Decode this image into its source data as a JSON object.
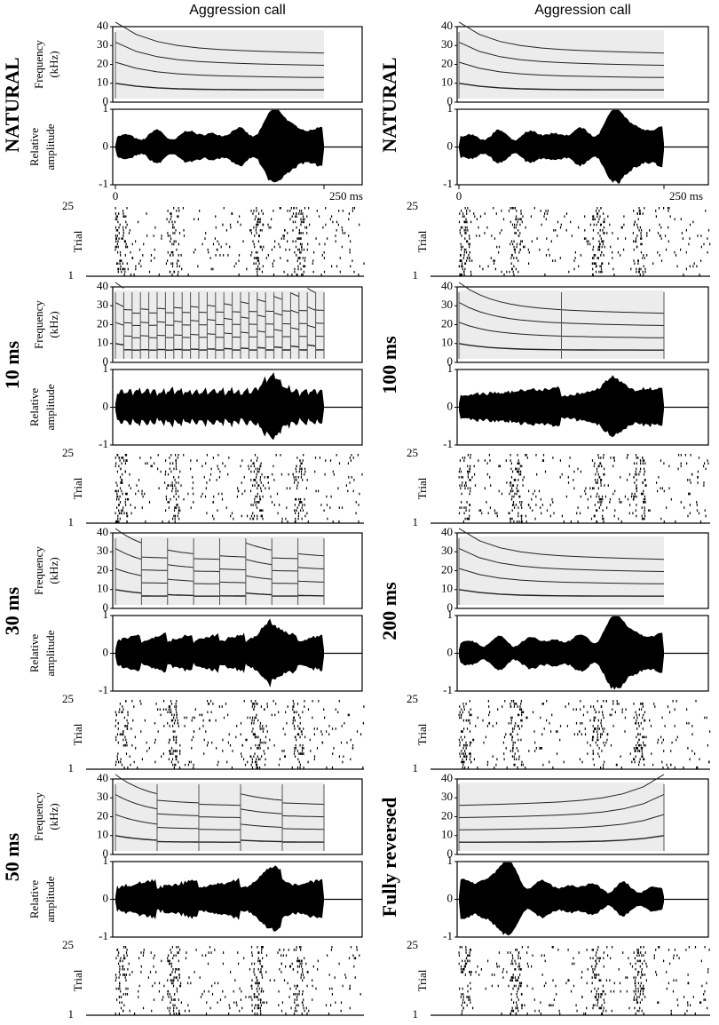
{
  "columns": [
    {
      "header": "Aggression call",
      "time_axis": [
        "0",
        "250 ms"
      ],
      "conditions": [
        {
          "label": "NATURAL"
        },
        {
          "label": "10 ms"
        },
        {
          "label": "30 ms"
        },
        {
          "label": "50 ms"
        }
      ]
    },
    {
      "header": "Aggression call",
      "time_axis": [
        "0",
        "250 ms"
      ],
      "conditions": [
        {
          "label": "NATURAL"
        },
        {
          "label": "100 ms"
        },
        {
          "label": "200 ms"
        },
        {
          "label": "Fully reversed"
        }
      ]
    }
  ],
  "axes": {
    "frequency": {
      "label": [
        "Frequency",
        "(kHz)"
      ],
      "ticks": [
        "40",
        "30",
        "20",
        "10",
        "0"
      ]
    },
    "amplitude": {
      "label": [
        "Relative",
        "amplitude"
      ],
      "ticks": [
        "1",
        "0",
        "-1"
      ]
    },
    "trial": {
      "label": "Trial",
      "ticks": [
        "25",
        "1"
      ]
    }
  }
}
